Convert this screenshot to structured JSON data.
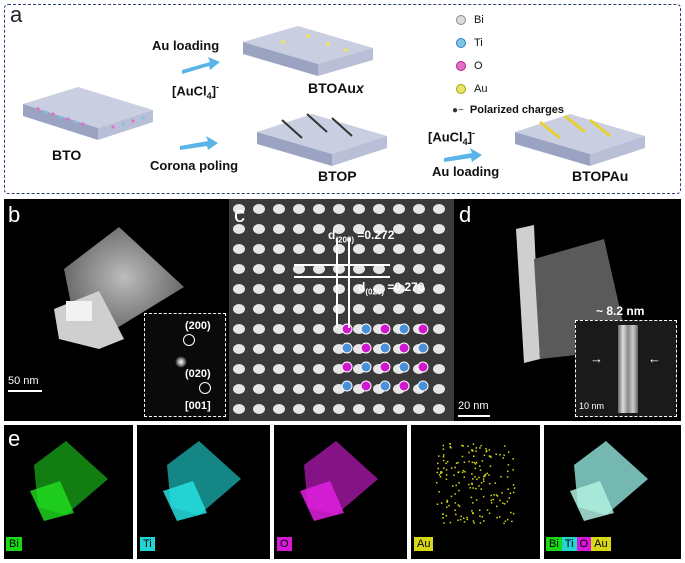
{
  "panel_a": {
    "label": "a",
    "bto": "BTO",
    "btoaux_prefix": "BTOAu",
    "btoaux_suffix": "x",
    "btop": "BTOP",
    "btopau": "BTOPAu",
    "au_loading_top": "Au loading",
    "aucl4_top": "[AuCl",
    "aucl4_sub": "4",
    "aucl4_sup": "]",
    "aucl4_minus": "-",
    "corona_poling": "Corona poling",
    "aucl4_right": "[AuCl",
    "au_loading_right": "Au loading",
    "legend": [
      {
        "label": "Bi",
        "color": "#8a8a8a",
        "fill": "#dcdcdc"
      },
      {
        "label": "Ti",
        "color": "#2f7fbf",
        "fill": "#7fc3e6"
      },
      {
        "label": "O",
        "color": "#b0208a",
        "fill": "#e36fc7"
      },
      {
        "label": "Au",
        "color": "#a7a000",
        "fill": "#e8e36a"
      }
    ],
    "polarized_label": "Polarized charges"
  },
  "panel_b": {
    "label": "b",
    "scale": "50 nm",
    "spot_200": "(200)",
    "spot_020": "(020)",
    "zone": "[001]"
  },
  "panel_c": {
    "label": "c",
    "d200_prefix": "d",
    "d200_sub": "(200)",
    "d200_value": " =0.272",
    "d020_prefix": "d",
    "d020_sub": "(020)",
    "d020_value": " =0.270"
  },
  "panel_d": {
    "label": "d",
    "scale": "20 nm",
    "inset_scale": "10 nm",
    "thickness": "~ 8.2 nm"
  },
  "panel_e": {
    "label": "e",
    "maps": [
      {
        "tag": "Bi",
        "color": "#18d818"
      },
      {
        "tag": "Ti",
        "color": "#22d4d4"
      },
      {
        "tag": "O",
        "color": "#d818d8"
      },
      {
        "tag": "Au",
        "color": "#d8d818"
      }
    ],
    "merge_tags": [
      {
        "tag": "Bi",
        "color": "#18d818"
      },
      {
        "tag": "Ti",
        "color": "#22d4d4"
      },
      {
        "tag": "O",
        "color": "#d818d8"
      },
      {
        "tag": "Au",
        "color": "#d8d818"
      }
    ]
  }
}
